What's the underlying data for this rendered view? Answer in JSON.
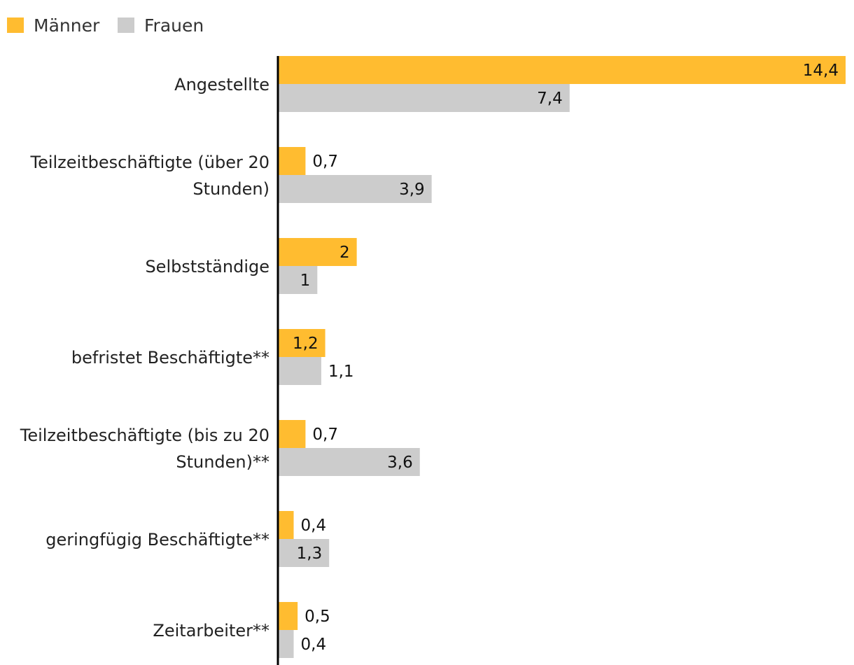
{
  "chart_data": {
    "type": "bar",
    "orientation": "horizontal",
    "title": "",
    "xlabel": "",
    "ylabel": "",
    "categories": [
      [
        "Angestellte"
      ],
      [
        "Teilzeitbeschäftigte (über 20",
        "Stunden)"
      ],
      [
        "Selbstständige"
      ],
      [
        "befristet Beschäftigte**"
      ],
      [
        "Teilzeitbeschäftigte (bis zu 20",
        "Stunden)**"
      ],
      [
        "geringfügig Beschäftigte**"
      ],
      [
        "Zeitarbeiter**"
      ]
    ],
    "series": [
      {
        "name": "Männer",
        "color": "#ffbc30",
        "values": [
          14.4,
          0.7,
          2,
          1.2,
          0.7,
          0.4,
          0.5
        ],
        "labels": [
          "14,4",
          "0,7",
          "2",
          "1,2",
          "0,7",
          "0,4",
          "0,5"
        ]
      },
      {
        "name": "Frauen",
        "color": "#cccccc",
        "values": [
          7.4,
          3.9,
          1,
          1.1,
          3.6,
          1.3,
          0.4
        ],
        "labels": [
          "7,4",
          "3,9",
          "1",
          "1,1",
          "3,6",
          "1,3",
          "0,4"
        ]
      }
    ],
    "xlim": [
      0,
      14.4
    ],
    "grid": false,
    "legend": "top-left",
    "axis_color": "#000000"
  }
}
